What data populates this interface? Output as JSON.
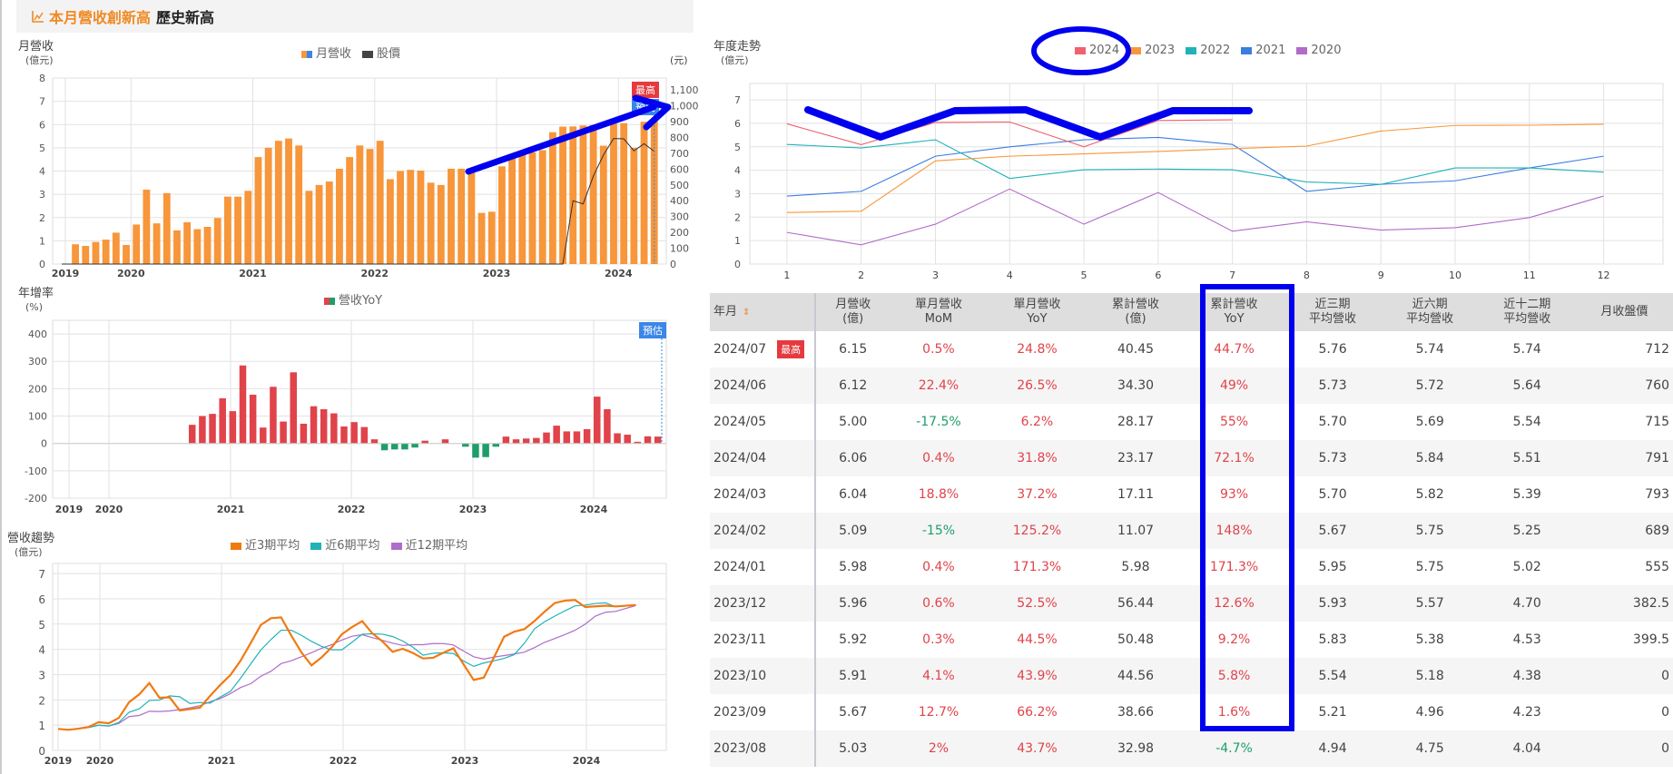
{
  "banner": {
    "title_highlight": "本月營收創新高",
    "title_rest": "歷史新高"
  },
  "revenue_chart": {
    "ylabel": "月營收",
    "yunit": "(億元)",
    "y2unit": "(元)",
    "legend": [
      "月營收",
      "股價"
    ],
    "badge_high": "最高",
    "badge_est": "預估",
    "yticks": [
      "0",
      "1",
      "2",
      "3",
      "4",
      "5",
      "6",
      "7",
      "8"
    ],
    "y2ticks": [
      "0",
      "100",
      "200",
      "300",
      "400",
      "500",
      "600",
      "700",
      "800",
      "900",
      "1,000",
      "1,100"
    ],
    "xticks": [
      "2019",
      "2020",
      "2021",
      "2022",
      "2023",
      "2024"
    ]
  },
  "yoy_chart": {
    "ylabel": "年增率",
    "yunit": "(%)",
    "legend": "營收YoY",
    "badge_est": "預估",
    "yticks": [
      "400",
      "300",
      "200",
      "100",
      "0",
      "-100",
      "-200"
    ],
    "xticks": [
      "2019",
      "2020",
      "2021",
      "2022",
      "2023",
      "2024"
    ]
  },
  "trend_chart": {
    "ylabel": "營收趨勢",
    "yunit": "(億元)",
    "legend": [
      "近3期平均",
      "近6期平均",
      "近12期平均"
    ],
    "yticks": [
      "0",
      "1",
      "2",
      "3",
      "4",
      "5",
      "6",
      "7"
    ],
    "xticks": [
      "2019",
      "2020",
      "2021",
      "2022",
      "2023",
      "2024"
    ]
  },
  "yearly_chart": {
    "ylabel": "年度走勢",
    "yunit": "(億元)",
    "legend": [
      "2024",
      "2023",
      "2022",
      "2021",
      "2020"
    ],
    "yticks": [
      "0",
      "1",
      "2",
      "3",
      "4",
      "5",
      "6",
      "7"
    ],
    "xticks": [
      "1",
      "2",
      "3",
      "4",
      "5",
      "6",
      "7",
      "8",
      "9",
      "10",
      "11",
      "12"
    ]
  },
  "chart_data": [
    {
      "type": "bar",
      "title": "月營收",
      "ylabel": "億元",
      "y2label": "元",
      "ylim": [
        0,
        8
      ],
      "y2lim": [
        0,
        1100
      ],
      "series": [
        {
          "name": "月營收",
          "values": [
            0.02,
            0.85,
            0.78,
            0.95,
            1.05,
            1.35,
            0.82,
            1.7,
            3.2,
            1.75,
            3.05,
            1.45,
            1.8,
            1.5,
            1.6,
            1.98,
            2.9,
            2.9,
            3.15,
            4.6,
            5.0,
            5.3,
            5.4,
            5.1,
            3.15,
            3.4,
            3.55,
            4.1,
            4.6,
            5.1,
            4.95,
            5.3,
            3.65,
            4.0,
            4.05,
            4.02,
            3.5,
            3.4,
            4.1,
            4.1,
            3.92,
            2.2,
            2.25,
            4.2,
            4.6,
            4.7,
            4.8,
            4.9,
            5.67,
            5.91,
            5.92,
            5.96,
            5.98,
            5.09,
            6.04,
            6.06,
            5.0,
            6.12,
            6.15
          ]
        },
        {
          "name": "股價",
          "values_tail": [
            0,
            400,
            380,
            555,
            689,
            793,
            791,
            715,
            760,
            712
          ]
        }
      ]
    },
    {
      "type": "bar",
      "title": "年增率",
      "ylabel": "%",
      "ylim": [
        -200,
        450
      ],
      "series": [
        {
          "name": "營收YoY",
          "values": [
            68,
            100,
            108,
            165,
            118,
            285,
            178,
            58,
            207,
            80,
            260,
            72,
            136,
            125,
            110,
            62,
            78,
            60,
            15,
            -25,
            -22,
            -22,
            -15,
            10,
            0,
            15,
            0,
            -12,
            -52,
            -50,
            -12,
            25,
            15,
            18,
            20,
            40,
            65,
            44,
            44,
            52,
            171,
            125,
            37,
            32,
            6,
            26,
            25
          ]
        }
      ]
    },
    {
      "type": "line",
      "title": "營收趨勢",
      "ylabel": "億元",
      "ylim": [
        0,
        7
      ],
      "series": [
        {
          "name": "近3期平均",
          "color": "#f07a12"
        },
        {
          "name": "近6期平均",
          "color": "#20b2b8"
        },
        {
          "name": "近12期平均",
          "color": "#b06cc8"
        }
      ]
    },
    {
      "type": "line",
      "title": "年度走勢",
      "ylabel": "億元",
      "ylim": [
        0,
        7
      ],
      "categories": [
        "1",
        "2",
        "3",
        "4",
        "5",
        "6",
        "7",
        "8",
        "9",
        "10",
        "11",
        "12"
      ],
      "series": [
        {
          "name": "2024",
          "values": [
            5.98,
            5.09,
            6.04,
            6.06,
            5.0,
            6.12,
            6.15
          ]
        },
        {
          "name": "2023",
          "values": [
            2.2,
            2.25,
            4.4,
            4.6,
            4.7,
            4.8,
            4.92,
            5.03,
            5.67,
            5.91,
            5.92,
            5.96
          ]
        },
        {
          "name": "2022",
          "values": [
            5.1,
            4.95,
            5.3,
            3.65,
            4.02,
            4.05,
            4.02,
            3.5,
            3.4,
            4.1,
            4.1,
            3.92
          ]
        },
        {
          "name": "2021",
          "values": [
            2.9,
            3.1,
            4.6,
            5.0,
            5.3,
            5.4,
            5.1,
            3.1,
            3.4,
            3.55,
            4.1,
            4.6
          ]
        },
        {
          "name": "2020",
          "values": [
            1.35,
            0.82,
            1.7,
            3.2,
            1.7,
            3.05,
            1.4,
            1.8,
            1.45,
            1.55,
            1.98,
            2.9
          ]
        }
      ]
    }
  ],
  "table": {
    "headers": [
      [
        "年月",
        ""
      ],
      [
        "月營收",
        "(億)"
      ],
      [
        "單月營收",
        "MoM"
      ],
      [
        "單月營收",
        "YoY"
      ],
      [
        "累計營收",
        "(億)"
      ],
      [
        "累計營收",
        "YoY"
      ],
      [
        "近三期",
        "平均營收"
      ],
      [
        "近六期",
        "平均營收"
      ],
      [
        "近十二期",
        "平均營收"
      ],
      [
        "月收盤價",
        ""
      ]
    ],
    "badge_high": "最高",
    "rows": [
      {
        "ym": "2024/07",
        "rev": "6.15",
        "mom": "0.5%",
        "yoy": "24.8%",
        "cum": "40.45",
        "cumyoy": "44.7%",
        "a3": "5.76",
        "a6": "5.74",
        "a12": "5.74",
        "price": "712"
      },
      {
        "ym": "2024/06",
        "rev": "6.12",
        "mom": "22.4%",
        "yoy": "26.5%",
        "cum": "34.30",
        "cumyoy": "49%",
        "a3": "5.73",
        "a6": "5.72",
        "a12": "5.64",
        "price": "760"
      },
      {
        "ym": "2024/05",
        "rev": "5.00",
        "mom": "-17.5%",
        "yoy": "6.2%",
        "cum": "28.17",
        "cumyoy": "55%",
        "a3": "5.70",
        "a6": "5.69",
        "a12": "5.54",
        "price": "715"
      },
      {
        "ym": "2024/04",
        "rev": "6.06",
        "mom": "0.4%",
        "yoy": "31.8%",
        "cum": "23.17",
        "cumyoy": "72.1%",
        "a3": "5.73",
        "a6": "5.84",
        "a12": "5.51",
        "price": "791"
      },
      {
        "ym": "2024/03",
        "rev": "6.04",
        "mom": "18.8%",
        "yoy": "37.2%",
        "cum": "17.11",
        "cumyoy": "93%",
        "a3": "5.70",
        "a6": "5.82",
        "a12": "5.39",
        "price": "793"
      },
      {
        "ym": "2024/02",
        "rev": "5.09",
        "mom": "-15%",
        "yoy": "125.2%",
        "cum": "11.07",
        "cumyoy": "148%",
        "a3": "5.67",
        "a6": "5.75",
        "a12": "5.25",
        "price": "689"
      },
      {
        "ym": "2024/01",
        "rev": "5.98",
        "mom": "0.4%",
        "yoy": "171.3%",
        "cum": "5.98",
        "cumyoy": "171.3%",
        "a3": "5.95",
        "a6": "5.75",
        "a12": "5.02",
        "price": "555"
      },
      {
        "ym": "2023/12",
        "rev": "5.96",
        "mom": "0.6%",
        "yoy": "52.5%",
        "cum": "56.44",
        "cumyoy": "12.6%",
        "a3": "5.93",
        "a6": "5.57",
        "a12": "4.70",
        "price": "382.5"
      },
      {
        "ym": "2023/11",
        "rev": "5.92",
        "mom": "0.3%",
        "yoy": "44.5%",
        "cum": "50.48",
        "cumyoy": "9.2%",
        "a3": "5.83",
        "a6": "5.38",
        "a12": "4.53",
        "price": "399.5"
      },
      {
        "ym": "2023/10",
        "rev": "5.91",
        "mom": "4.1%",
        "yoy": "43.9%",
        "cum": "44.56",
        "cumyoy": "5.8%",
        "a3": "5.54",
        "a6": "5.18",
        "a12": "4.38",
        "price": "0"
      },
      {
        "ym": "2023/09",
        "rev": "5.67",
        "mom": "12.7%",
        "yoy": "66.2%",
        "cum": "38.66",
        "cumyoy": "1.6%",
        "a3": "5.21",
        "a6": "4.96",
        "a12": "4.23",
        "price": "0"
      },
      {
        "ym": "2023/08",
        "rev": "5.03",
        "mom": "2%",
        "yoy": "43.7%",
        "cum": "32.98",
        "cumyoy": "-4.7%",
        "a3": "4.94",
        "a6": "4.75",
        "a12": "4.04",
        "price": "0"
      }
    ]
  },
  "colors": {
    "orange": "#f7963a",
    "red": "#e0434a",
    "green": "#1f9d6a",
    "blue_badge": "#3a86e8",
    "annotation": "#0000ee"
  }
}
